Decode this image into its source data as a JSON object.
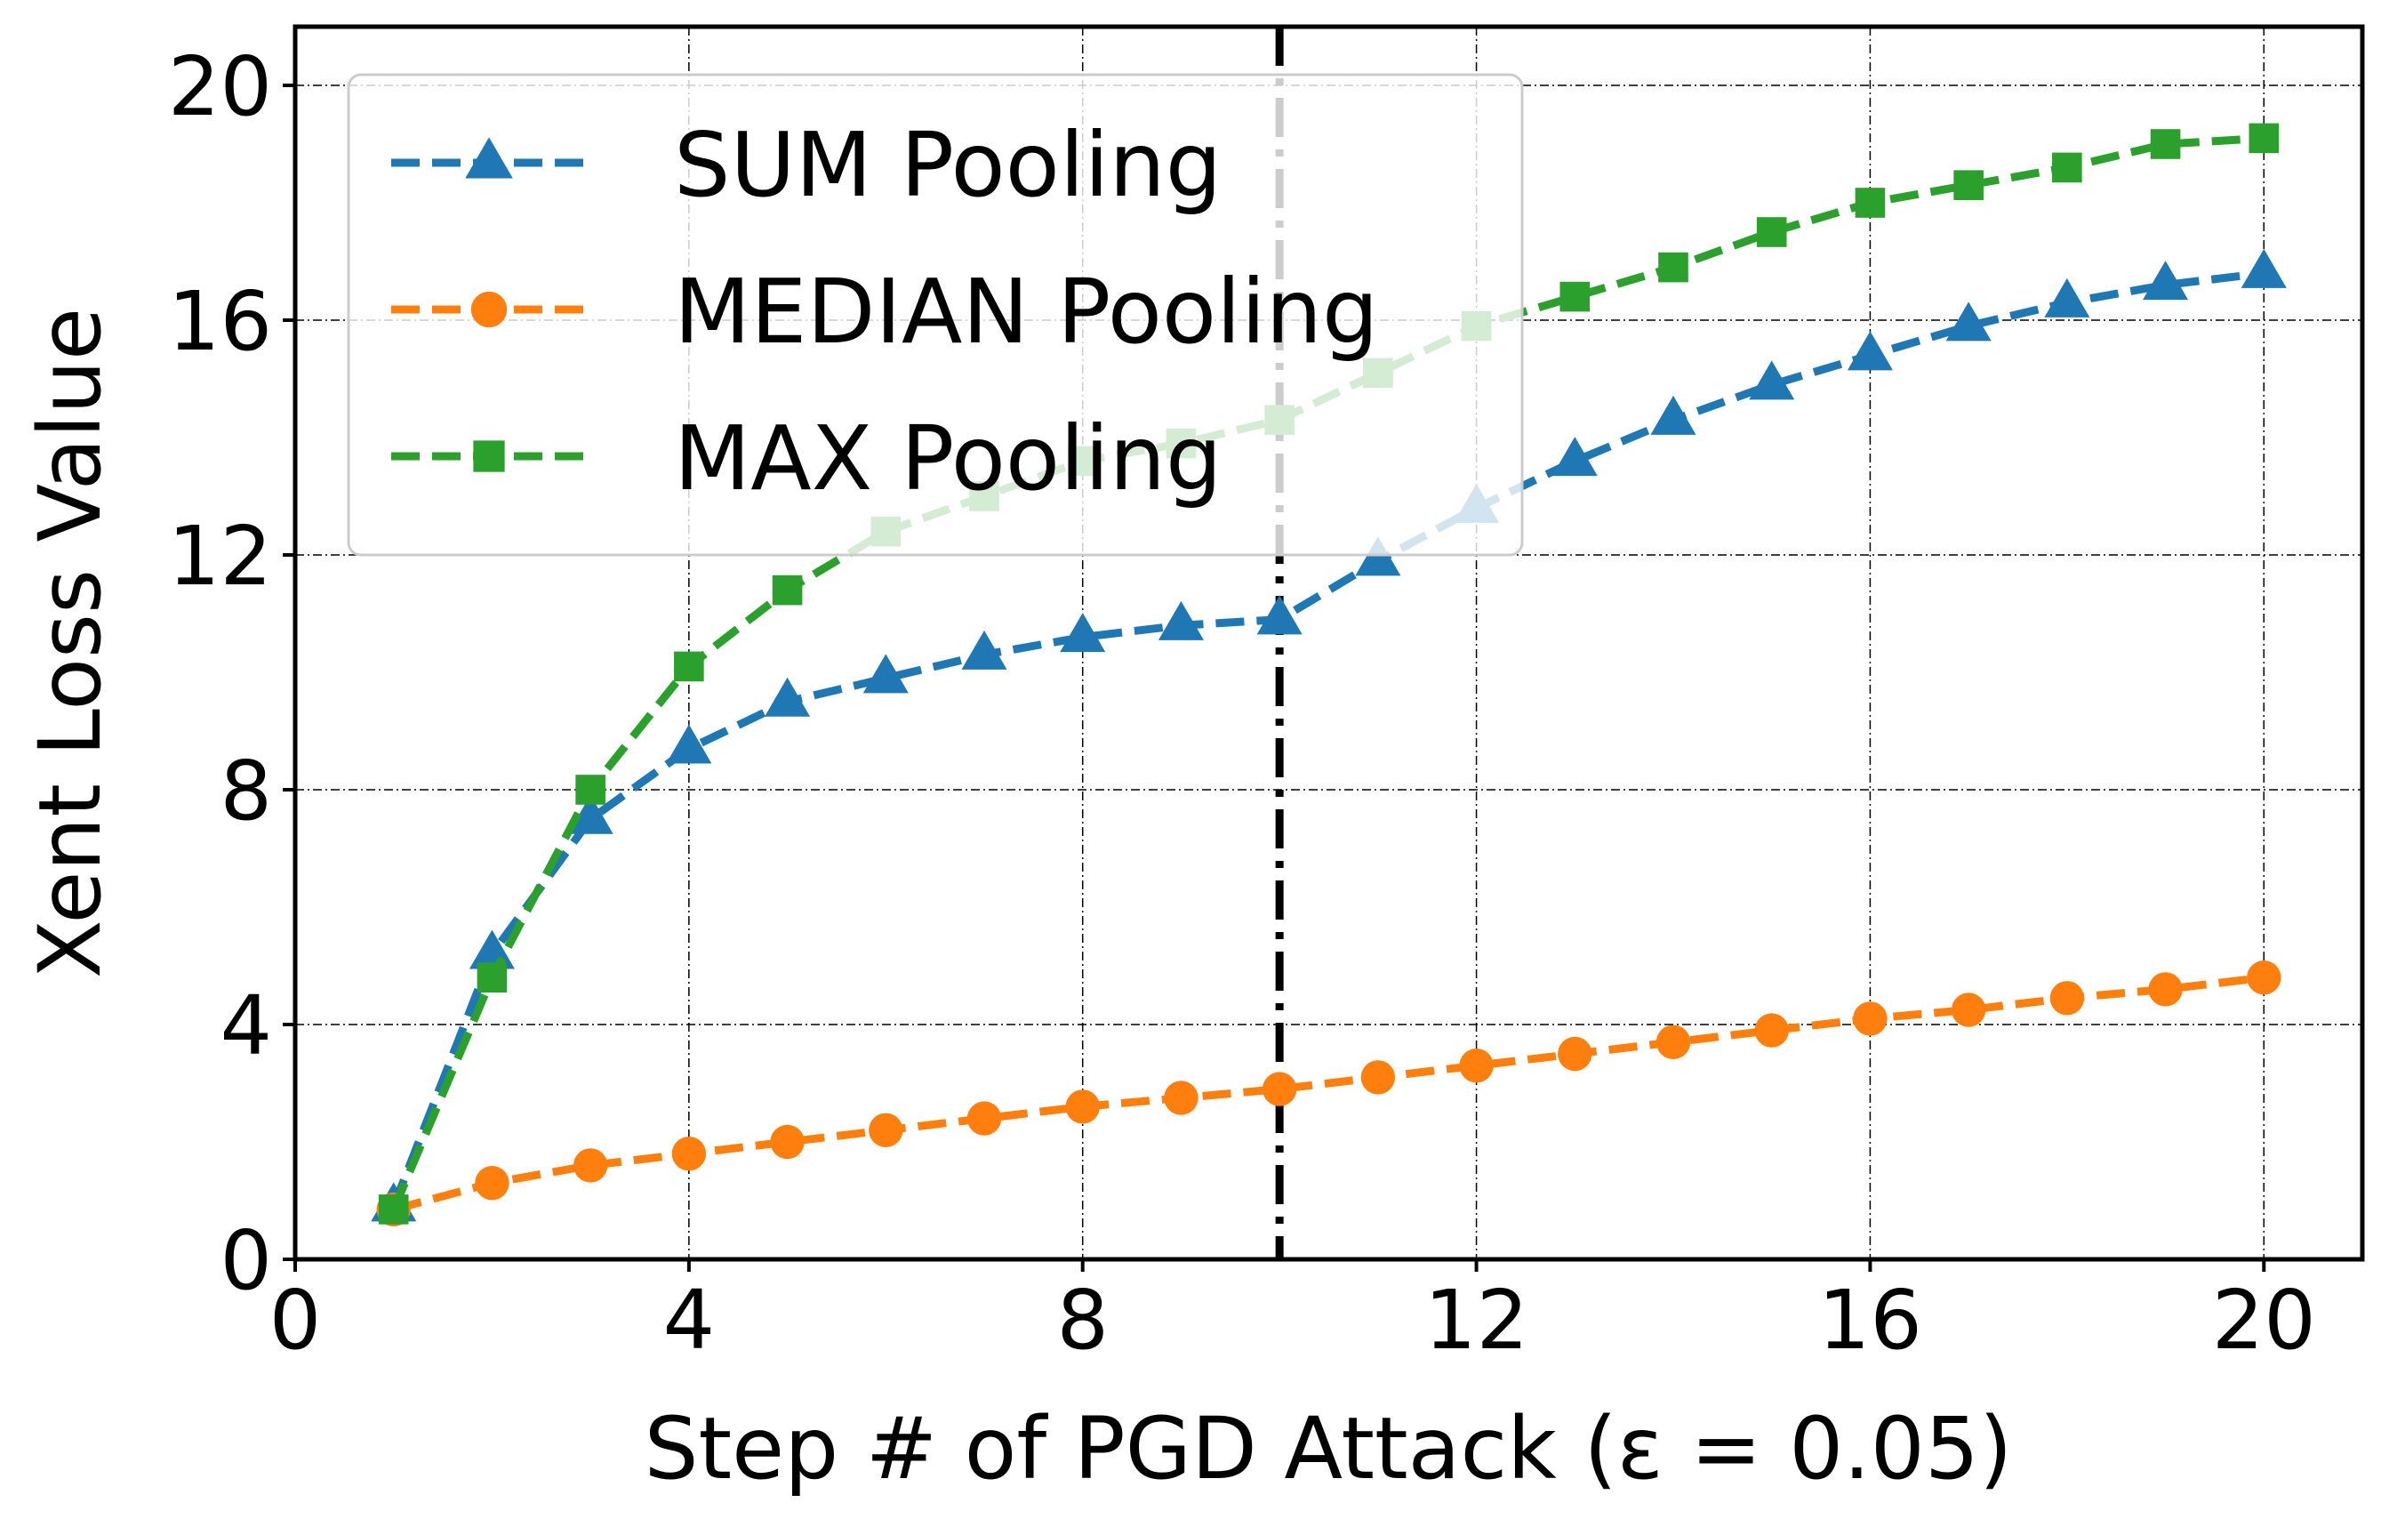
{
  "chart_data": {
    "type": "line",
    "xlabel": "Step # of PGD Attack (ε = 0.05)",
    "ylabel": "Xent Loss Value",
    "xlim": [
      0,
      21
    ],
    "ylim": [
      0,
      21
    ],
    "xticks": [
      "0",
      "4",
      "8",
      "12",
      "16",
      "20"
    ],
    "yticks": [
      "0",
      "4",
      "8",
      "12",
      "16",
      "20"
    ],
    "grid": true,
    "legend_position": "top-left",
    "vline": {
      "x": 10,
      "style": "dash-dot",
      "color": "#000000"
    },
    "x": [
      1,
      2,
      3,
      4,
      5,
      6,
      7,
      8,
      9,
      10,
      11,
      12,
      13,
      14,
      15,
      16,
      17,
      18,
      19,
      20
    ],
    "series": [
      {
        "name": "SUM Pooling",
        "color": "#1f77b4",
        "marker": "triangle",
        "values": [
          0.9,
          5.2,
          7.5,
          8.7,
          9.5,
          9.9,
          10.3,
          10.6,
          10.8,
          10.9,
          11.9,
          12.8,
          13.6,
          14.3,
          14.9,
          15.4,
          15.9,
          16.3,
          16.6,
          16.8
        ]
      },
      {
        "name": "MEDIAN Pooling",
        "color": "#ff7f0e",
        "marker": "circle",
        "values": [
          0.85,
          1.3,
          1.6,
          1.8,
          2.0,
          2.2,
          2.4,
          2.6,
          2.75,
          2.9,
          3.1,
          3.3,
          3.5,
          3.7,
          3.9,
          4.1,
          4.25,
          4.45,
          4.6,
          4.8
        ]
      },
      {
        "name": "MAX Pooling",
        "color": "#2ca02c",
        "marker": "square",
        "values": [
          0.85,
          4.8,
          8.0,
          10.1,
          11.4,
          12.4,
          13.0,
          13.6,
          13.9,
          14.3,
          15.1,
          15.9,
          16.4,
          16.9,
          17.5,
          18.0,
          18.3,
          18.6,
          19.0,
          19.1
        ]
      }
    ]
  }
}
